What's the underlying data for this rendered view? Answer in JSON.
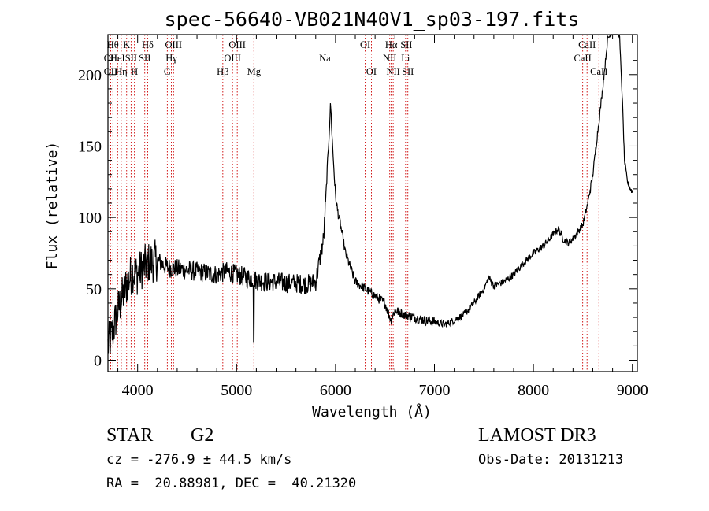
{
  "chart_data": {
    "type": "line",
    "title": "spec-56640-VB021N40V1_sp03-197.fits",
    "xlabel": "Wavelength (Å)",
    "ylabel": "Flux (relative)",
    "xlim": [
      3700,
      9050
    ],
    "ylim": [
      -8,
      228
    ],
    "xticks": [
      4000,
      5000,
      6000,
      7000,
      8000,
      9000
    ],
    "yticks": [
      0,
      50,
      100,
      150,
      200
    ],
    "grid": false,
    "series": [
      {
        "name": "spectrum",
        "x": [
          3700,
          3750,
          3800,
          3850,
          3900,
          3950,
          4000,
          4050,
          4100,
          4200,
          4300,
          4400,
          4500,
          4600,
          4700,
          4800,
          4900,
          5000,
          5100,
          5170,
          5200,
          5300,
          5400,
          5500,
          5600,
          5700,
          5800,
          5880,
          5900,
          5950,
          5970,
          6000,
          6020,
          6050,
          6100,
          6200,
          6300,
          6400,
          6500,
          6560,
          6600,
          6700,
          6800,
          6900,
          7000,
          7100,
          7200,
          7300,
          7400,
          7500,
          7550,
          7600,
          7700,
          7800,
          7900,
          8000,
          8100,
          8200,
          8250,
          8300,
          8350,
          8400,
          8500,
          8550,
          8600,
          8650,
          8700,
          8750,
          8800,
          8850,
          8870,
          8900,
          8920,
          8950,
          8980,
          9000
        ],
        "y": [
          10,
          20,
          35,
          45,
          55,
          62,
          60,
          65,
          68,
          70,
          65,
          64,
          63,
          62,
          61,
          60,
          62,
          60,
          58,
          57,
          56,
          55,
          55,
          54,
          54,
          53,
          55,
          85,
          110,
          180,
          150,
          115,
          105,
          95,
          75,
          55,
          50,
          45,
          40,
          28,
          35,
          32,
          30,
          28,
          27,
          25,
          28,
          32,
          40,
          50,
          58,
          52,
          55,
          60,
          68,
          75,
          80,
          88,
          92,
          85,
          82,
          85,
          95,
          110,
          130,
          160,
          190,
          225,
          230,
          230,
          228,
          180,
          140,
          125,
          120,
          118
        ]
      }
    ],
    "line_markers": [
      {
        "x": 3727,
        "label": "OII",
        "row": 1
      },
      {
        "x": 3727,
        "label": "OII",
        "row": 2
      },
      {
        "x": 3750,
        "label": "Hθ",
        "row": 0
      },
      {
        "x": 3798,
        "label": "HeI",
        "row": 1
      },
      {
        "x": 3835,
        "label": "Hη",
        "row": 2
      },
      {
        "x": 3889,
        "label": "K",
        "row": 0
      },
      {
        "x": 3934,
        "label": "SII",
        "row": 1
      },
      {
        "x": 3968,
        "label": "H",
        "row": 2
      },
      {
        "x": 4102,
        "label": "Hδ",
        "row": 0
      },
      {
        "x": 4072,
        "label": "SII",
        "row": 1
      },
      {
        "x": 4300,
        "label": "G",
        "row": 2
      },
      {
        "x": 4341,
        "label": "Hγ",
        "row": 1
      },
      {
        "x": 4363,
        "label": "OIII",
        "row": 0
      },
      {
        "x": 4861,
        "label": "Hβ",
        "row": 2
      },
      {
        "x": 4959,
        "label": "OIII",
        "row": 1
      },
      {
        "x": 5007,
        "label": "OIII",
        "row": 0
      },
      {
        "x": 5175,
        "label": "Mg",
        "row": 2
      },
      {
        "x": 5893,
        "label": "Na",
        "row": 1
      },
      {
        "x": 6300,
        "label": "OI",
        "row": 0
      },
      {
        "x": 6363,
        "label": "OI",
        "row": 2
      },
      {
        "x": 6548,
        "label": "NII",
        "row": 1
      },
      {
        "x": 6563,
        "label": "Hα",
        "row": 0
      },
      {
        "x": 6583,
        "label": "NII",
        "row": 2
      },
      {
        "x": 6708,
        "label": "Li",
        "row": 1
      },
      {
        "x": 6716,
        "label": "SII",
        "row": 0
      },
      {
        "x": 6731,
        "label": "SII",
        "row": 2
      },
      {
        "x": 8498,
        "label": "CaII",
        "row": 1
      },
      {
        "x": 8542,
        "label": "CaII",
        "row": 0
      },
      {
        "x": 8662,
        "label": "CaII",
        "row": 2
      }
    ]
  },
  "info": {
    "object_class": "STAR",
    "subclass": "G2",
    "survey": "LAMOST DR3",
    "cz": "cz = -276.9 ± 44.5 km/s",
    "obs_date": "Obs-Date: 20131213",
    "radec": "RA =  20.88981, DEC =  40.21320"
  },
  "colors": {
    "line": "#000000",
    "marker": "#cc0000"
  }
}
